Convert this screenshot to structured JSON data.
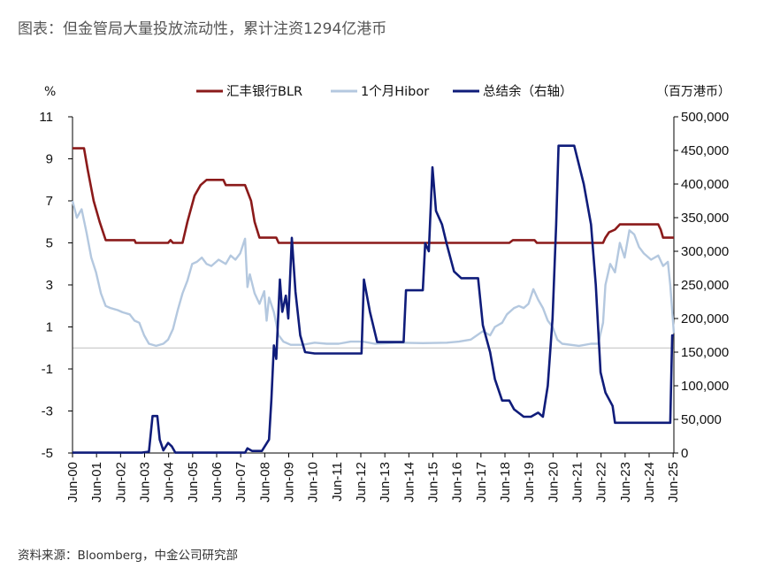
{
  "title": "图表：但金管局大量投放流动性，累计注资1294亿港币",
  "source": "资料来源：Bloomberg，中金公司研究部",
  "chart_data": {
    "type": "line",
    "left_unit": "%",
    "right_unit": "（百万港币）",
    "left_axis": {
      "ylim": [
        -5,
        11
      ],
      "ticks": [
        "11",
        "9",
        "7",
        "5",
        "3",
        "1",
        "-1",
        "-3",
        "-5"
      ]
    },
    "right_axis": {
      "ylim": [
        0,
        500000
      ],
      "ticks": [
        "500,000",
        "450,000",
        "400,000",
        "350,000",
        "300,000",
        "250,000",
        "200,000",
        "150,000",
        "100,000",
        "50,000",
        "0"
      ]
    },
    "x_ticks": [
      "Jun-00",
      "Jun-01",
      "Jun-02",
      "Jun-03",
      "Jun-04",
      "Jun-05",
      "Jun-06",
      "Jun-07",
      "Jun-08",
      "Jun-09",
      "Jun-10",
      "Jun-11",
      "Jun-12",
      "Jun-13",
      "Jun-14",
      "Jun-15",
      "Jun-16",
      "Jun-17",
      "Jun-18",
      "Jun-19",
      "Jun-20",
      "Jun-21",
      "Jun-22",
      "Jun-23",
      "Jun-24",
      "Jun-25"
    ],
    "colors": {
      "blr": "#8B1A1A",
      "hibor": "#B4C8DF",
      "balance": "#0F1C7A",
      "zero_line": "#bfbfbf"
    },
    "series": [
      {
        "name": "汇丰银行BLR",
        "axis": "left",
        "key": "blr",
        "points": [
          [
            2000.42,
            9.5
          ],
          [
            2000.9,
            9.5
          ],
          [
            2001.05,
            8.5
          ],
          [
            2001.3,
            7.0
          ],
          [
            2001.55,
            6.0
          ],
          [
            2001.8,
            5.13
          ],
          [
            2003.0,
            5.13
          ],
          [
            2003.05,
            5.0
          ],
          [
            2004.4,
            5.0
          ],
          [
            2004.5,
            5.13
          ],
          [
            2004.6,
            5.0
          ],
          [
            2005.0,
            5.0
          ],
          [
            2005.2,
            6.0
          ],
          [
            2005.5,
            7.25
          ],
          [
            2005.75,
            7.75
          ],
          [
            2006.0,
            8.0
          ],
          [
            2006.7,
            8.0
          ],
          [
            2006.8,
            7.75
          ],
          [
            2007.6,
            7.75
          ],
          [
            2007.85,
            7.0
          ],
          [
            2008.0,
            6.0
          ],
          [
            2008.2,
            5.25
          ],
          [
            2008.9,
            5.25
          ],
          [
            2009.0,
            5.0
          ],
          [
            2018.6,
            5.0
          ],
          [
            2018.75,
            5.13
          ],
          [
            2019.65,
            5.13
          ],
          [
            2019.75,
            5.0
          ],
          [
            2022.5,
            5.0
          ],
          [
            2022.6,
            5.25
          ],
          [
            2022.75,
            5.5
          ],
          [
            2023.0,
            5.63
          ],
          [
            2023.2,
            5.88
          ],
          [
            2024.8,
            5.88
          ],
          [
            2024.9,
            5.63
          ],
          [
            2025.0,
            5.25
          ],
          [
            2025.45,
            5.25
          ]
        ]
      },
      {
        "name": "1个月Hibor",
        "axis": "left",
        "key": "hibor",
        "points": [
          [
            2000.42,
            7.0
          ],
          [
            2000.6,
            6.2
          ],
          [
            2000.8,
            6.6
          ],
          [
            2001.0,
            5.5
          ],
          [
            2001.2,
            4.3
          ],
          [
            2001.4,
            3.6
          ],
          [
            2001.6,
            2.6
          ],
          [
            2001.8,
            2.0
          ],
          [
            2002.0,
            1.9
          ],
          [
            2002.3,
            1.8
          ],
          [
            2002.5,
            1.7
          ],
          [
            2002.8,
            1.6
          ],
          [
            2003.0,
            1.3
          ],
          [
            2003.2,
            1.2
          ],
          [
            2003.4,
            0.6
          ],
          [
            2003.6,
            0.2
          ],
          [
            2003.9,
            0.1
          ],
          [
            2004.2,
            0.2
          ],
          [
            2004.4,
            0.4
          ],
          [
            2004.6,
            0.9
          ],
          [
            2004.8,
            1.8
          ],
          [
            2005.0,
            2.6
          ],
          [
            2005.2,
            3.2
          ],
          [
            2005.4,
            4.0
          ],
          [
            2005.6,
            4.1
          ],
          [
            2005.8,
            4.3
          ],
          [
            2006.0,
            4.0
          ],
          [
            2006.2,
            3.9
          ],
          [
            2006.5,
            4.2
          ],
          [
            2006.8,
            4.0
          ],
          [
            2007.0,
            4.4
          ],
          [
            2007.2,
            4.2
          ],
          [
            2007.4,
            4.5
          ],
          [
            2007.6,
            5.2
          ],
          [
            2007.7,
            2.9
          ],
          [
            2007.8,
            3.5
          ],
          [
            2008.0,
            2.6
          ],
          [
            2008.2,
            2.1
          ],
          [
            2008.4,
            2.7
          ],
          [
            2008.5,
            1.3
          ],
          [
            2008.6,
            2.4
          ],
          [
            2008.8,
            1.7
          ],
          [
            2009.0,
            0.6
          ],
          [
            2009.2,
            0.3
          ],
          [
            2009.5,
            0.15
          ],
          [
            2010.0,
            0.15
          ],
          [
            2010.5,
            0.25
          ],
          [
            2011.0,
            0.2
          ],
          [
            2011.5,
            0.2
          ],
          [
            2012.0,
            0.3
          ],
          [
            2012.5,
            0.3
          ],
          [
            2013.0,
            0.2
          ],
          [
            2014.0,
            0.25
          ],
          [
            2015.0,
            0.23
          ],
          [
            2016.0,
            0.25
          ],
          [
            2016.5,
            0.3
          ],
          [
            2017.0,
            0.4
          ],
          [
            2017.5,
            0.8
          ],
          [
            2017.8,
            0.6
          ],
          [
            2018.0,
            1.0
          ],
          [
            2018.3,
            1.2
          ],
          [
            2018.5,
            1.6
          ],
          [
            2018.8,
            1.9
          ],
          [
            2019.0,
            2.0
          ],
          [
            2019.2,
            1.9
          ],
          [
            2019.4,
            2.1
          ],
          [
            2019.6,
            2.8
          ],
          [
            2019.8,
            2.3
          ],
          [
            2020.0,
            1.9
          ],
          [
            2020.2,
            1.3
          ],
          [
            2020.4,
            1.0
          ],
          [
            2020.6,
            0.4
          ],
          [
            2020.8,
            0.2
          ],
          [
            2021.5,
            0.1
          ],
          [
            2022.0,
            0.2
          ],
          [
            2022.3,
            0.2
          ],
          [
            2022.5,
            1.2
          ],
          [
            2022.6,
            3.0
          ],
          [
            2022.8,
            4.0
          ],
          [
            2023.0,
            3.6
          ],
          [
            2023.2,
            5.0
          ],
          [
            2023.4,
            4.3
          ],
          [
            2023.6,
            5.6
          ],
          [
            2023.8,
            5.4
          ],
          [
            2024.0,
            4.8
          ],
          [
            2024.2,
            4.5
          ],
          [
            2024.5,
            4.2
          ],
          [
            2024.8,
            4.4
          ],
          [
            2025.0,
            3.9
          ],
          [
            2025.2,
            4.1
          ],
          [
            2025.3,
            3.0
          ],
          [
            2025.45,
            0.7
          ]
        ]
      },
      {
        "name": "总结余（右轴）",
        "axis": "right",
        "key": "balance",
        "points": [
          [
            2000.42,
            500
          ],
          [
            2003.3,
            500
          ],
          [
            2003.6,
            2000
          ],
          [
            2003.75,
            55000
          ],
          [
            2003.95,
            55000
          ],
          [
            2004.05,
            20000
          ],
          [
            2004.2,
            4000
          ],
          [
            2004.4,
            15000
          ],
          [
            2004.55,
            10000
          ],
          [
            2004.7,
            500
          ],
          [
            2007.6,
            500
          ],
          [
            2007.7,
            7000
          ],
          [
            2007.9,
            3000
          ],
          [
            2008.3,
            3000
          ],
          [
            2008.6,
            20000
          ],
          [
            2008.7,
            80000
          ],
          [
            2008.8,
            160000
          ],
          [
            2008.9,
            140000
          ],
          [
            2009.05,
            258000
          ],
          [
            2009.15,
            210000
          ],
          [
            2009.3,
            234000
          ],
          [
            2009.4,
            200000
          ],
          [
            2009.55,
            320000
          ],
          [
            2009.7,
            240000
          ],
          [
            2009.9,
            175000
          ],
          [
            2010.1,
            150000
          ],
          [
            2010.5,
            148000
          ],
          [
            2011.0,
            148000
          ],
          [
            2011.5,
            148000
          ],
          [
            2012.0,
            148000
          ],
          [
            2012.45,
            148000
          ],
          [
            2012.55,
            258000
          ],
          [
            2012.8,
            210000
          ],
          [
            2013.1,
            165000
          ],
          [
            2014.0,
            165000
          ],
          [
            2014.2,
            165000
          ],
          [
            2014.3,
            242000
          ],
          [
            2015.0,
            242000
          ],
          [
            2015.1,
            312000
          ],
          [
            2015.25,
            300000
          ],
          [
            2015.4,
            425000
          ],
          [
            2015.55,
            360000
          ],
          [
            2015.8,
            340000
          ],
          [
            2016.0,
            310000
          ],
          [
            2016.3,
            270000
          ],
          [
            2016.6,
            260000
          ],
          [
            2017.0,
            260000
          ],
          [
            2017.3,
            260000
          ],
          [
            2017.5,
            190000
          ],
          [
            2017.8,
            150000
          ],
          [
            2018.0,
            110000
          ],
          [
            2018.3,
            78000
          ],
          [
            2018.6,
            78000
          ],
          [
            2018.8,
            65000
          ],
          [
            2019.2,
            54000
          ],
          [
            2019.5,
            54000
          ],
          [
            2019.8,
            60000
          ],
          [
            2020.0,
            54000
          ],
          [
            2020.2,
            100000
          ],
          [
            2020.4,
            200000
          ],
          [
            2020.55,
            340000
          ],
          [
            2020.65,
            457000
          ],
          [
            2021.3,
            457000
          ],
          [
            2021.7,
            400000
          ],
          [
            2022.0,
            340000
          ],
          [
            2022.2,
            250000
          ],
          [
            2022.4,
            120000
          ],
          [
            2022.6,
            90000
          ],
          [
            2022.9,
            70000
          ],
          [
            2023.0,
            45000
          ],
          [
            2024.5,
            45000
          ],
          [
            2025.0,
            45000
          ],
          [
            2025.3,
            45000
          ],
          [
            2025.38,
            175000
          ],
          [
            2025.45,
            175000
          ]
        ]
      }
    ]
  }
}
